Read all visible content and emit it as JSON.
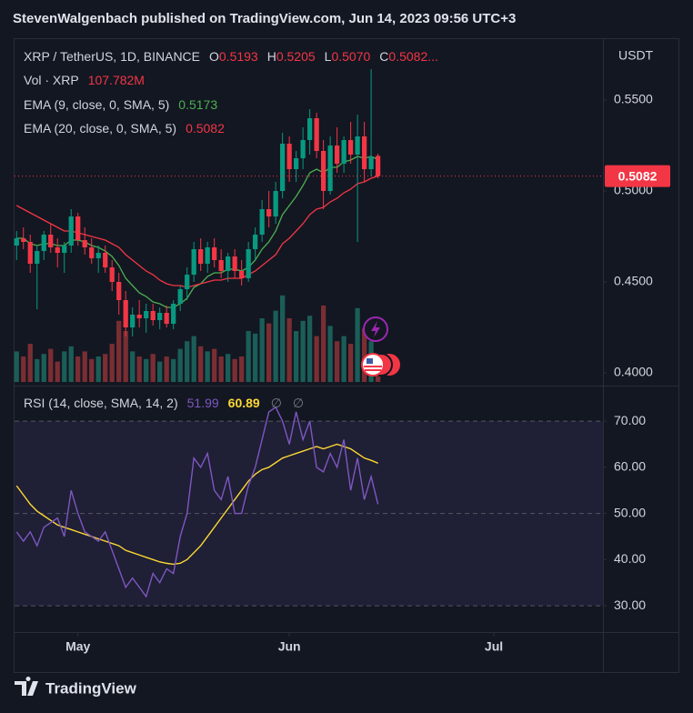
{
  "header": {
    "text": "StevenWalgenbach published on TradingView.com, Jun 14, 2023 09:56 UTC+3"
  },
  "footer": {
    "brand": "TradingView"
  },
  "legend": {
    "symbol": "XRP / TetherUS, 1D, BINANCE",
    "o_key": "O",
    "o": "0.5193",
    "h_key": "H",
    "h": "0.5205",
    "l_key": "L",
    "l": "0.5070",
    "c_key": "C",
    "c": "0.5082...",
    "vol_key": "Vol · XRP",
    "vol": "107.782M",
    "ema9_value": "0.5173",
    "ema20_value": "0.5082",
    "rsi_value": "51.99",
    "rsi_ma_value": "60.89",
    "na1": "∅",
    "na2": "∅"
  },
  "chart_data": [
    {
      "type": "candlestick",
      "unit": "USDT",
      "categories": [
        null,
        null,
        null,
        null,
        null,
        null,
        null,
        null,
        null,
        null,
        null,
        null,
        null,
        null,
        null,
        null,
        null,
        null,
        null,
        null,
        null,
        null,
        null,
        null,
        null,
        null,
        null,
        null,
        null,
        null,
        null,
        null,
        null,
        null,
        null,
        null,
        null,
        null,
        null,
        null,
        null,
        null,
        null,
        null,
        null,
        null,
        null,
        null,
        null,
        null,
        null,
        null,
        null,
        null
      ],
      "open": [
        0.47,
        0.474,
        0.472,
        0.46,
        0.467,
        0.476,
        0.469,
        0.466,
        0.47,
        0.486,
        0.473,
        0.469,
        0.463,
        0.466,
        0.458,
        0.45,
        0.44,
        0.425,
        0.432,
        0.43,
        0.434,
        0.429,
        0.433,
        0.427,
        0.438,
        0.446,
        0.454,
        0.468,
        0.46,
        0.469,
        0.462,
        0.456,
        0.464,
        0.456,
        0.452,
        0.468,
        0.476,
        0.49,
        0.486,
        0.5,
        0.526,
        0.512,
        0.518,
        0.528,
        0.54,
        0.522,
        0.5,
        0.525,
        0.515,
        0.528,
        0.52,
        0.53,
        0.512,
        0.5193
      ],
      "high": [
        0.478,
        0.48,
        0.476,
        0.47,
        0.478,
        0.482,
        0.474,
        0.472,
        0.49,
        0.488,
        0.48,
        0.474,
        0.47,
        0.47,
        0.462,
        0.455,
        0.445,
        0.436,
        0.44,
        0.438,
        0.438,
        0.436,
        0.437,
        0.44,
        0.448,
        0.458,
        0.472,
        0.474,
        0.472,
        0.474,
        0.468,
        0.466,
        0.468,
        0.462,
        0.472,
        0.48,
        0.495,
        0.5,
        0.505,
        0.532,
        0.53,
        0.522,
        0.535,
        0.545,
        0.543,
        0.528,
        0.53,
        0.535,
        0.53,
        0.538,
        0.542,
        0.538,
        0.567,
        0.5205
      ],
      "low": [
        0.462,
        0.468,
        0.455,
        0.435,
        0.462,
        0.466,
        0.458,
        0.455,
        0.466,
        0.47,
        0.465,
        0.46,
        0.455,
        0.455,
        0.445,
        0.432,
        0.42,
        0.42,
        0.425,
        0.422,
        0.426,
        0.424,
        0.425,
        0.424,
        0.434,
        0.44,
        0.45,
        0.456,
        0.455,
        0.458,
        0.452,
        0.45,
        0.452,
        0.448,
        0.45,
        0.462,
        0.472,
        0.48,
        0.482,
        0.496,
        0.505,
        0.505,
        0.512,
        0.52,
        0.518,
        0.49,
        0.498,
        0.51,
        0.51,
        0.515,
        0.472,
        0.505,
        0.508,
        0.507
      ],
      "close": [
        0.474,
        0.472,
        0.46,
        0.467,
        0.476,
        0.469,
        0.466,
        0.47,
        0.486,
        0.473,
        0.469,
        0.463,
        0.466,
        0.458,
        0.45,
        0.44,
        0.425,
        0.432,
        0.43,
        0.434,
        0.429,
        0.433,
        0.427,
        0.438,
        0.446,
        0.454,
        0.468,
        0.46,
        0.469,
        0.462,
        0.456,
        0.464,
        0.456,
        0.452,
        0.468,
        0.476,
        0.49,
        0.486,
        0.5,
        0.526,
        0.512,
        0.518,
        0.528,
        0.54,
        0.522,
        0.5,
        0.525,
        0.515,
        0.528,
        0.52,
        0.53,
        0.512,
        0.519,
        0.5082
      ],
      "up_color": "#089981",
      "down_color": "#f23645",
      "series": [
        {
          "name": "EMA (9, close, 0, SMA, 5)",
          "color": "#4caf50",
          "values": [
            0.474,
            0.474,
            0.471,
            0.47,
            0.471,
            0.471,
            0.47,
            0.47,
            0.473,
            0.473,
            0.472,
            0.47,
            0.469,
            0.467,
            0.464,
            0.459,
            0.452,
            0.448,
            0.444,
            0.442,
            0.439,
            0.438,
            0.436,
            0.436,
            0.438,
            0.441,
            0.447,
            0.449,
            0.453,
            0.455,
            0.455,
            0.457,
            0.457,
            0.456,
            0.458,
            0.462,
            0.468,
            0.472,
            0.478,
            0.487,
            0.492,
            0.497,
            0.503,
            0.51,
            0.512,
            0.51,
            0.513,
            0.513,
            0.516,
            0.517,
            0.519,
            0.518,
            0.519,
            0.5173
          ]
        },
        {
          "name": "EMA (20, close, 0, SMA, 5)",
          "color": "#f23645",
          "values": [
            0.492,
            0.49,
            0.488,
            0.486,
            0.484,
            0.482,
            0.48,
            0.478,
            0.478,
            0.477,
            0.476,
            0.475,
            0.474,
            0.473,
            0.471,
            0.469,
            0.465,
            0.462,
            0.459,
            0.456,
            0.454,
            0.451,
            0.449,
            0.448,
            0.448,
            0.447,
            0.448,
            0.449,
            0.45,
            0.451,
            0.451,
            0.452,
            0.452,
            0.452,
            0.454,
            0.456,
            0.459,
            0.462,
            0.465,
            0.471,
            0.474,
            0.478,
            0.482,
            0.487,
            0.49,
            0.491,
            0.494,
            0.496,
            0.499,
            0.501,
            0.504,
            0.505,
            0.507,
            0.5082
          ]
        }
      ],
      "volume": {
        "values": [
          120,
          100,
          150,
          90,
          110,
          130,
          80,
          120,
          140,
          100,
          120,
          90,
          100,
          110,
          150,
          240,
          200,
          120,
          100,
          90,
          110,
          80,
          100,
          90,
          130,
          160,
          180,
          140,
          120,
          130,
          100,
          110,
          90,
          100,
          200,
          190,
          250,
          230,
          280,
          340,
          250,
          200,
          240,
          260,
          180,
          300,
          220,
          160,
          180,
          150,
          290,
          210,
          160,
          107.782
        ],
        "ylim": [
          0,
          400
        ],
        "up_color": "#1b5e58",
        "down_color": "#7a2e33"
      },
      "last_price": {
        "value": 0.5082,
        "label": "0.5082"
      },
      "ylim": [
        0.395,
        0.584
      ],
      "yticks": [
        {
          "value": 0.55,
          "label": "0.5500"
        },
        {
          "value": 0.5,
          "label": "0.5000"
        },
        {
          "value": 0.45,
          "label": "0.4500"
        },
        {
          "value": 0.4,
          "label": "0.4000"
        }
      ],
      "xlim": [
        -0.3,
        86
      ],
      "xticks": [
        {
          "value": 9,
          "label": "May"
        },
        {
          "value": 40,
          "label": "Jun"
        },
        {
          "value": 70,
          "label": "Jul"
        }
      ]
    },
    {
      "type": "line",
      "title": "RSI (14, close, SMA, 14, 2)",
      "series": [
        {
          "color": "#7e57c2",
          "values": [
            46,
            44,
            46,
            43,
            47,
            48,
            49,
            45,
            55,
            50,
            46,
            45,
            44,
            46,
            42,
            38,
            34,
            36,
            34,
            32,
            37,
            35,
            38,
            37,
            45,
            50,
            62,
            60,
            63,
            55,
            53,
            58,
            50,
            50,
            56,
            60,
            66,
            72,
            73,
            70,
            65,
            72,
            66,
            70,
            60,
            59,
            63,
            60,
            66,
            55,
            62,
            53,
            58,
            51.99
          ]
        },
        {
          "color": "#fdd835",
          "values": [
            56,
            54,
            52,
            50.5,
            49.5,
            48.5,
            47.5,
            47,
            46.5,
            46,
            45.5,
            45,
            44.5,
            44,
            43.5,
            43,
            42,
            41.5,
            41,
            40.5,
            40,
            39.5,
            39.2,
            39,
            39.2,
            40,
            41.5,
            43,
            45,
            47,
            49,
            51,
            53,
            55,
            57,
            58.5,
            59.5,
            60,
            61,
            62,
            62.5,
            63,
            63.5,
            64,
            64.5,
            64,
            64.5,
            65,
            64.5,
            64,
            63,
            62,
            61.5,
            60.89
          ]
        }
      ],
      "band": [
        30,
        70
      ],
      "ylim": [
        24.3,
        77.5
      ],
      "yticks": [
        {
          "value": 70,
          "label": "70.00"
        },
        {
          "value": 60,
          "label": "60.00"
        },
        {
          "value": 50,
          "label": "50.00"
        },
        {
          "value": 40,
          "label": "40.00"
        },
        {
          "value": 30,
          "label": "30.00"
        }
      ],
      "grid_ticks": [
        70,
        50,
        30
      ],
      "xlim": [
        -0.3,
        86
      ]
    }
  ]
}
